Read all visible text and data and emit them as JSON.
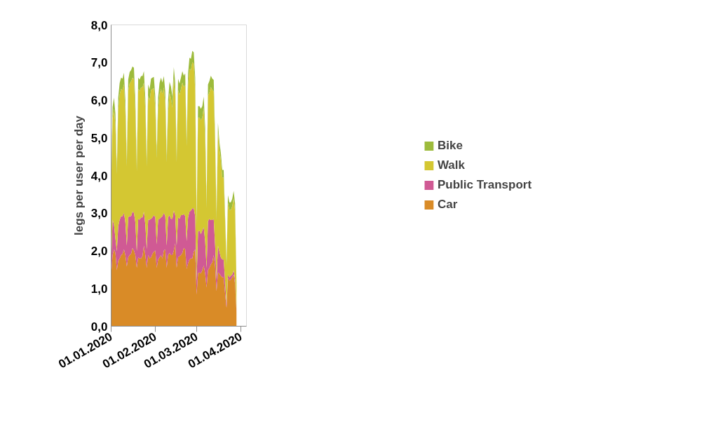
{
  "chart_data": {
    "type": "area",
    "stacked": true,
    "ylabel": "legs per user per day",
    "x": [
      "2020-01-01",
      "2020-01-02",
      "2020-01-03",
      "2020-01-04",
      "2020-01-05",
      "2020-01-06",
      "2020-01-07",
      "2020-01-08",
      "2020-01-09",
      "2020-01-10",
      "2020-01-11",
      "2020-01-12",
      "2020-01-13",
      "2020-01-14",
      "2020-01-15",
      "2020-01-16",
      "2020-01-17",
      "2020-01-18",
      "2020-01-19",
      "2020-01-20",
      "2020-01-21",
      "2020-01-22",
      "2020-01-23",
      "2020-01-24",
      "2020-01-25",
      "2020-01-26",
      "2020-01-27",
      "2020-01-28",
      "2020-01-29",
      "2020-01-30",
      "2020-01-31",
      "2020-02-01",
      "2020-02-02",
      "2020-02-03",
      "2020-02-04",
      "2020-02-05",
      "2020-02-06",
      "2020-02-07",
      "2020-02-08",
      "2020-02-09",
      "2020-02-10",
      "2020-02-11",
      "2020-02-12",
      "2020-02-13",
      "2020-02-14",
      "2020-02-15",
      "2020-02-16",
      "2020-02-17",
      "2020-02-18",
      "2020-02-19",
      "2020-02-20",
      "2020-02-21",
      "2020-02-22",
      "2020-02-23",
      "2020-02-24",
      "2020-02-25",
      "2020-02-26",
      "2020-02-27",
      "2020-02-28",
      "2020-02-29",
      "2020-03-01",
      "2020-03-02",
      "2020-03-03",
      "2020-03-04",
      "2020-03-05",
      "2020-03-06",
      "2020-03-07",
      "2020-03-08",
      "2020-03-09",
      "2020-03-10",
      "2020-03-11",
      "2020-03-12",
      "2020-03-13",
      "2020-03-14",
      "2020-03-15",
      "2020-03-16",
      "2020-03-17",
      "2020-03-18",
      "2020-03-19",
      "2020-03-20",
      "2020-03-21",
      "2020-03-22",
      "2020-03-23",
      "2020-03-24",
      "2020-03-25",
      "2020-03-26",
      "2020-03-27",
      "2020-03-28",
      "2020-03-29"
    ],
    "series": [
      {
        "name": "Car",
        "color": "#d98b27",
        "values": [
          1.36,
          1.89,
          2.04,
          1.95,
          1.49,
          1.74,
          1.8,
          1.89,
          1.92,
          2.04,
          1.89,
          1.58,
          1.83,
          1.89,
          1.92,
          2.08,
          2.01,
          1.89,
          1.55,
          1.83,
          1.8,
          1.8,
          1.86,
          2.14,
          1.89,
          1.55,
          1.89,
          1.8,
          1.83,
          1.92,
          1.98,
          2.01,
          1.55,
          1.77,
          1.83,
          1.89,
          1.8,
          2.01,
          2.04,
          1.55,
          1.89,
          1.95,
          1.89,
          1.89,
          2.01,
          2.2,
          1.55,
          1.83,
          1.86,
          1.89,
          1.95,
          2.08,
          2.04,
          1.52,
          1.67,
          1.77,
          1.8,
          1.8,
          1.98,
          2.04,
          0.84,
          1.41,
          1.43,
          1.4,
          1.49,
          1.61,
          1.4,
          1.03,
          1.49,
          1.55,
          1.64,
          1.7,
          1.89,
          1.58,
          0.93,
          1.43,
          1.4,
          1.34,
          1.3,
          1.3,
          0.86,
          0.49,
          1.28,
          1.21,
          1.24,
          1.3,
          1.37,
          1.12,
          0.37
        ]
      },
      {
        "name": "Public Transport",
        "color": "#d05a94",
        "values": [
          0.28,
          0.94,
          0.66,
          0.38,
          0.5,
          0.92,
          1.03,
          1.03,
          1.0,
          0.97,
          0.87,
          0.56,
          1.06,
          1.03,
          1.0,
          0.96,
          1.0,
          0.87,
          0.44,
          1.02,
          1.03,
          1.09,
          1.03,
          0.9,
          0.81,
          0.5,
          0.94,
          1.03,
          1.02,
          0.97,
          0.97,
          0.88,
          0.62,
          1.06,
          1.02,
          1.0,
          1.12,
          1.0,
          0.88,
          0.59,
          1.0,
          1.0,
          0.96,
          0.96,
          1.06,
          0.75,
          0.59,
          1.06,
          0.99,
          1.06,
          1.0,
          0.9,
          0.88,
          0.74,
          1.22,
          1.27,
          1.27,
          1.33,
          1.15,
          0.88,
          0.37,
          1.1,
          1.11,
          1.04,
          1.05,
          1.02,
          0.86,
          0.52,
          1.3,
          1.3,
          1.18,
          1.12,
          0.96,
          0.56,
          0.31,
          0.71,
          0.58,
          0.49,
          0.47,
          0.47,
          0.35,
          0.1,
          0.09,
          0.09,
          0.1,
          0.07,
          0.12,
          0.12,
          0.06
        ]
      },
      {
        "name": "Walk",
        "color": "#d4c732",
        "values": [
          2.02,
          2.69,
          3.07,
          3.01,
          2.05,
          3.12,
          3.33,
          3.38,
          3.35,
          3.42,
          2.94,
          2.1,
          3.36,
          3.53,
          3.58,
          3.56,
          3.55,
          2.93,
          2.12,
          3.45,
          3.42,
          3.45,
          3.45,
          3.43,
          3.05,
          2.19,
          3.29,
          3.16,
          3.42,
          3.41,
          3.37,
          2.91,
          2.29,
          2.95,
          3.31,
          3.41,
          3.25,
          3.33,
          3.01,
          2.21,
          2.83,
          3.24,
          3.21,
          2.95,
          3.51,
          3.21,
          2.21,
          3.38,
          3.29,
          3.35,
          3.52,
          3.37,
          3.49,
          2.52,
          3.52,
          3.79,
          3.73,
          3.88,
          3.84,
          3.38,
          1.47,
          3.03,
          3.0,
          3.03,
          3.0,
          3.17,
          2.74,
          1.59,
          3.33,
          3.36,
          3.53,
          3.45,
          3.39,
          2.65,
          1.59,
          3.06,
          2.71,
          2.58,
          2.18,
          2.18,
          1.58,
          1.04,
          1.91,
          1.79,
          1.75,
          1.81,
          1.9,
          1.82,
          0.67
        ]
      },
      {
        "name": "Bike",
        "color": "#9dbb3c",
        "values": [
          0.15,
          0.3,
          0.3,
          0.3,
          0.15,
          0.3,
          0.3,
          0.3,
          0.3,
          0.3,
          0.3,
          0.15,
          0.3,
          0.3,
          0.3,
          0.3,
          0.3,
          0.3,
          0.15,
          0.3,
          0.3,
          0.3,
          0.3,
          0.3,
          0.3,
          0.15,
          0.3,
          0.3,
          0.3,
          0.3,
          0.3,
          0.3,
          0.15,
          0.3,
          0.3,
          0.3,
          0.3,
          0.3,
          0.3,
          0.15,
          0.3,
          0.3,
          0.3,
          0.3,
          0.3,
          0.3,
          0.15,
          0.3,
          0.3,
          0.3,
          0.3,
          0.3,
          0.3,
          0.15,
          0.3,
          0.3,
          0.3,
          0.3,
          0.3,
          0.3,
          0.15,
          0.3,
          0.3,
          0.3,
          0.3,
          0.3,
          0.3,
          0.15,
          0.3,
          0.3,
          0.3,
          0.3,
          0.3,
          0.2,
          0.15,
          0.2,
          0.2,
          0.2,
          0.2,
          0.2,
          0.15,
          0.1,
          0.2,
          0.2,
          0.2,
          0.2,
          0.2,
          0.2,
          0.05
        ]
      }
    ],
    "xlim": [
      "2020-01-01",
      "2020-04-05"
    ],
    "xticks": [
      {
        "value": "2020-01-01",
        "label": "01.01.2020"
      },
      {
        "value": "2020-02-01",
        "label": "01.02.2020"
      },
      {
        "value": "2020-03-01",
        "label": "01.03.2020"
      },
      {
        "value": "2020-04-01",
        "label": "01.04.2020"
      }
    ],
    "ylim": [
      0,
      8
    ],
    "yticks": [
      {
        "value": 0,
        "label": "0,0"
      },
      {
        "value": 1,
        "label": "1,0"
      },
      {
        "value": 2,
        "label": "2,0"
      },
      {
        "value": 3,
        "label": "3,0"
      },
      {
        "value": 4,
        "label": "4,0"
      },
      {
        "value": 5,
        "label": "5,0"
      },
      {
        "value": 6,
        "label": "6,0"
      },
      {
        "value": 7,
        "label": "7,0"
      },
      {
        "value": 8,
        "label": "8,0"
      }
    ],
    "grid": false,
    "legend": "right"
  }
}
